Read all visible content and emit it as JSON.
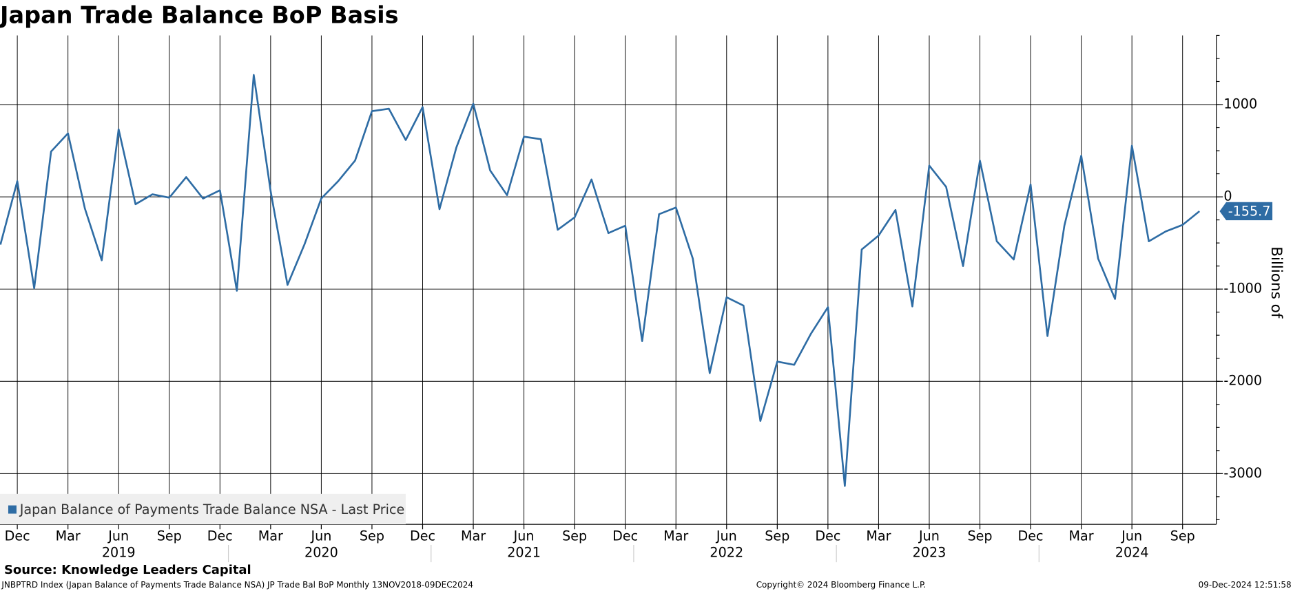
{
  "chart_data": {
    "type": "line",
    "title": "Japan Trade Balance BoP Basis",
    "y_label": "Billions of",
    "x": [
      "2018-11",
      "2018-12",
      "2019-01",
      "2019-02",
      "2019-03",
      "2019-04",
      "2019-05",
      "2019-06",
      "2019-07",
      "2019-08",
      "2019-09",
      "2019-10",
      "2019-11",
      "2019-12",
      "2020-01",
      "2020-02",
      "2020-03",
      "2020-04",
      "2020-05",
      "2020-06",
      "2020-07",
      "2020-08",
      "2020-09",
      "2020-10",
      "2020-11",
      "2020-12",
      "2021-01",
      "2021-02",
      "2021-03",
      "2021-04",
      "2021-05",
      "2021-06",
      "2021-07",
      "2021-08",
      "2021-09",
      "2021-10",
      "2021-11",
      "2021-12",
      "2022-01",
      "2022-02",
      "2022-03",
      "2022-04",
      "2022-05",
      "2022-06",
      "2022-07",
      "2022-08",
      "2022-09",
      "2022-10",
      "2022-11",
      "2022-12",
      "2023-01",
      "2023-02",
      "2023-03",
      "2023-04",
      "2023-05",
      "2023-06",
      "2023-07",
      "2023-08",
      "2023-09",
      "2023-10",
      "2023-11",
      "2023-12",
      "2024-01",
      "2024-02",
      "2024-03",
      "2024-04",
      "2024-05",
      "2024-06",
      "2024-07",
      "2024-08",
      "2024-09",
      "2024-10"
    ],
    "series": [
      {
        "name": "Japan Balance of Payments Trade Balance NSA - Last Price",
        "color": "#2e6ca4",
        "values": [
          -518,
          170,
          -991,
          491,
          688,
          -125,
          -688,
          732,
          -80,
          27,
          -9,
          214,
          -18,
          71,
          -1018,
          1321,
          62,
          -955,
          -518,
          -18,
          170,
          393,
          929,
          955,
          616,
          973,
          -134,
          536,
          1009,
          286,
          18,
          652,
          625,
          -357,
          -223,
          188,
          -393,
          -313,
          -1563,
          -188,
          -116,
          -670,
          -1911,
          -1089,
          -1179,
          -2429,
          -1786,
          -1821,
          -1482,
          -1196,
          -3134,
          -571,
          -420,
          -143,
          -1188,
          339,
          107,
          -750,
          393,
          -482,
          -679,
          134,
          -1509,
          -313,
          446,
          -670,
          -1107,
          554,
          -482,
          -375,
          -304,
          -155.7
        ]
      }
    ],
    "xticks": [
      {
        "value": "2018-12",
        "label": "Dec"
      },
      {
        "value": "2019-03",
        "label": "Mar"
      },
      {
        "value": "2019-06",
        "label": "Jun"
      },
      {
        "value": "2019-09",
        "label": "Sep"
      },
      {
        "value": "2019-12",
        "label": "Dec"
      },
      {
        "value": "2020-03",
        "label": "Mar"
      },
      {
        "value": "2020-06",
        "label": "Jun"
      },
      {
        "value": "2020-09",
        "label": "Sep"
      },
      {
        "value": "2020-12",
        "label": "Dec"
      },
      {
        "value": "2021-03",
        "label": "Mar"
      },
      {
        "value": "2021-06",
        "label": "Jun"
      },
      {
        "value": "2021-09",
        "label": "Sep"
      },
      {
        "value": "2021-12",
        "label": "Dec"
      },
      {
        "value": "2022-03",
        "label": "Mar"
      },
      {
        "value": "2022-06",
        "label": "Jun"
      },
      {
        "value": "2022-09",
        "label": "Sep"
      },
      {
        "value": "2022-12",
        "label": "Dec"
      },
      {
        "value": "2023-03",
        "label": "Mar"
      },
      {
        "value": "2023-06",
        "label": "Jun"
      },
      {
        "value": "2023-09",
        "label": "Sep"
      },
      {
        "value": "2023-12",
        "label": "Dec"
      },
      {
        "value": "2024-03",
        "label": "Mar"
      },
      {
        "value": "2024-06",
        "label": "Jun"
      },
      {
        "value": "2024-09",
        "label": "Sep"
      }
    ],
    "year_labels": [
      "2019",
      "2020",
      "2021",
      "2022",
      "2023",
      "2024"
    ],
    "ylim": [
      -3550,
      1750
    ],
    "yticks": [
      1000,
      0,
      -1000,
      -2000,
      -3000
    ],
    "grid": true,
    "legend": "lower left"
  },
  "source": "Source: Knowledge Leaders Capital",
  "footer": {
    "description": "JNBPTRD Index (Japan Balance of Payments Trade Balance NSA) JP Trade Bal BoP  Monthly 13NOV2018-09DEC2024",
    "copyright": "Copyright© 2024 Bloomberg Finance L.P.",
    "timestamp": "09-Dec-2024 12:51:58"
  }
}
